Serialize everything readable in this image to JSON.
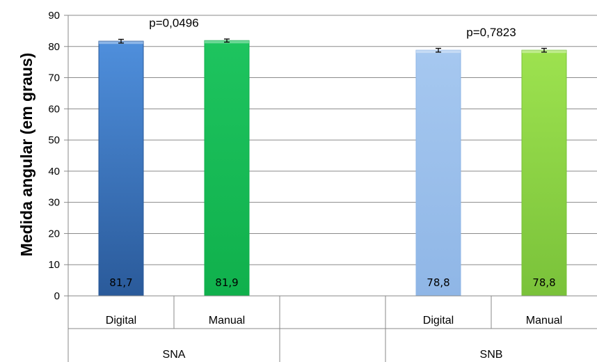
{
  "chart_data": {
    "type": "bar",
    "ylabel": "Medida angular (em graus)",
    "ylim": [
      0,
      90
    ],
    "yticks": [
      0,
      10,
      20,
      30,
      40,
      50,
      60,
      70,
      80,
      90
    ],
    "grid": true,
    "groups": [
      {
        "name": "SNA",
        "annotation": "p=0,0496",
        "bars": [
          {
            "category": "Digital",
            "value": 81.7,
            "label": "81,7",
            "error": 0.6,
            "color_top": "#4f8fdc",
            "color_bottom": "#2a5a9a"
          },
          {
            "category": "Manual",
            "value": 81.9,
            "label": "81,9",
            "error": 0.5,
            "color_top": "#1ec45f",
            "color_bottom": "#10b04c"
          }
        ]
      },
      {
        "name": "SNB",
        "annotation": "p=0,7823",
        "bars": [
          {
            "category": "Digital",
            "value": 78.8,
            "label": "78,8",
            "error": 0.6,
            "color_top": "#a6c8f0",
            "color_bottom": "#8fb6e6"
          },
          {
            "category": "Manual",
            "value": 78.8,
            "label": "78,8",
            "error": 0.6,
            "color_top": "#9de24f",
            "color_bottom": "#7ac23a"
          }
        ]
      }
    ]
  }
}
